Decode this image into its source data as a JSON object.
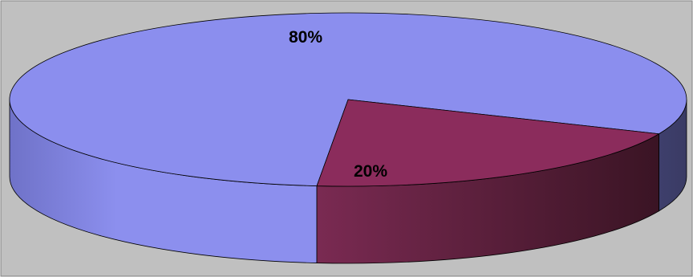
{
  "chart_data": {
    "type": "pie",
    "style": "3d",
    "title": "",
    "legend": "none",
    "categories": [
      "",
      ""
    ],
    "values": [
      80,
      20
    ],
    "unit": "%",
    "data_labels": [
      "80%",
      "20%"
    ],
    "colors": [
      "#8B8EEE",
      "#8B2C5C"
    ],
    "background": "#C0C0C0"
  }
}
